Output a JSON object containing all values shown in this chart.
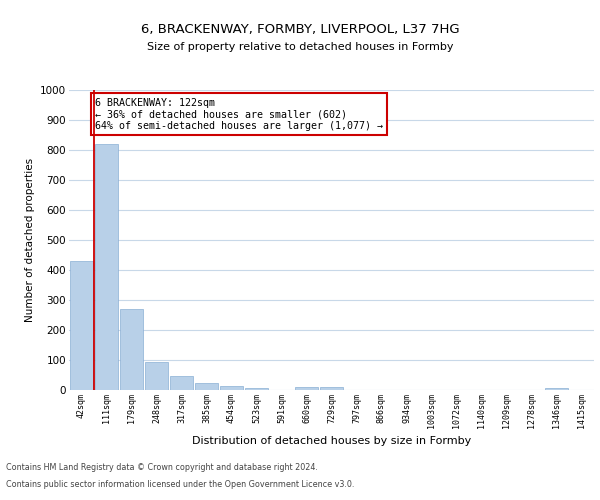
{
  "title": "6, BRACKENWAY, FORMBY, LIVERPOOL, L37 7HG",
  "subtitle": "Size of property relative to detached houses in Formby",
  "xlabel": "Distribution of detached houses by size in Formby",
  "ylabel": "Number of detached properties",
  "categories": [
    "42sqm",
    "111sqm",
    "179sqm",
    "248sqm",
    "317sqm",
    "385sqm",
    "454sqm",
    "523sqm",
    "591sqm",
    "660sqm",
    "729sqm",
    "797sqm",
    "866sqm",
    "934sqm",
    "1003sqm",
    "1072sqm",
    "1140sqm",
    "1209sqm",
    "1278sqm",
    "1346sqm",
    "1415sqm"
  ],
  "values": [
    430,
    820,
    270,
    95,
    48,
    22,
    12,
    8,
    0,
    10,
    10,
    0,
    0,
    0,
    0,
    0,
    0,
    0,
    0,
    8,
    0
  ],
  "bar_color": "#b8d0e8",
  "bar_edge_color": "#8aafd4",
  "vline_x": 0.5,
  "vline_color": "#cc0000",
  "annotation_text": "6 BRACKENWAY: 122sqm\n← 36% of detached houses are smaller (602)\n64% of semi-detached houses are larger (1,077) →",
  "annotation_box_color": "#ffffff",
  "annotation_box_edge": "#cc0000",
  "ylim": [
    0,
    1000
  ],
  "yticks": [
    0,
    100,
    200,
    300,
    400,
    500,
    600,
    700,
    800,
    900,
    1000
  ],
  "background_color": "#ffffff",
  "grid_color": "#c8d8e8",
  "title_fontsize": 9.5,
  "subtitle_fontsize": 8,
  "footer_line1": "Contains HM Land Registry data © Crown copyright and database right 2024.",
  "footer_line2": "Contains public sector information licensed under the Open Government Licence v3.0."
}
